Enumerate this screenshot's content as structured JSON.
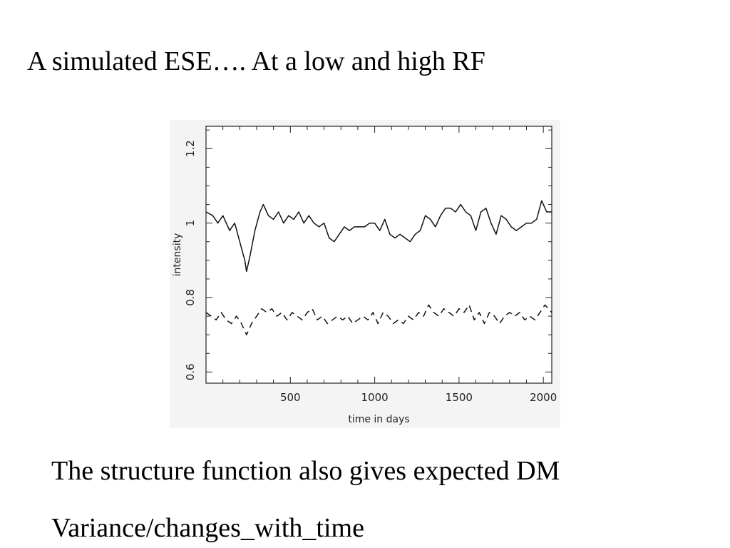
{
  "slide": {
    "title": "A simulated ESE…. At a low and high RF",
    "body_lines": [
      "The structure function also gives expected DM",
      "Variance/changes_with_time"
    ]
  },
  "chart_data": {
    "type": "line",
    "title": "",
    "xlabel": "time in days",
    "ylabel": "intensity",
    "xlim": [
      0,
      2050
    ],
    "ylim": [
      0.57,
      1.26
    ],
    "x_ticks": [
      500,
      1000,
      1500,
      2000
    ],
    "x_tick_labels": [
      "500",
      "1000",
      "1500",
      "2000"
    ],
    "y_ticks": [
      0.6,
      0.8,
      1.0,
      1.2
    ],
    "y_tick_labels": [
      "0.6",
      "0.8",
      "1",
      "1.2"
    ],
    "grid": false,
    "legend": "none",
    "series": [
      {
        "style": "solid",
        "x": [
          0,
          40,
          70,
          100,
          140,
          170,
          200,
          230,
          240,
          260,
          290,
          320,
          340,
          370,
          400,
          430,
          460,
          490,
          520,
          550,
          580,
          610,
          640,
          670,
          700,
          730,
          760,
          790,
          820,
          850,
          880,
          910,
          940,
          970,
          1000,
          1030,
          1060,
          1090,
          1120,
          1150,
          1180,
          1210,
          1240,
          1270,
          1300,
          1330,
          1360,
          1390,
          1420,
          1450,
          1480,
          1510,
          1540,
          1570,
          1600,
          1630,
          1660,
          1690,
          1720,
          1750,
          1780,
          1810,
          1840,
          1870,
          1900,
          1930,
          1960,
          1990,
          2020,
          2050
        ],
        "y": [
          1.03,
          1.02,
          1.0,
          1.02,
          0.98,
          1.0,
          0.95,
          0.9,
          0.87,
          0.91,
          0.98,
          1.03,
          1.05,
          1.02,
          1.01,
          1.03,
          1.0,
          1.02,
          1.01,
          1.03,
          1.0,
          1.02,
          1.0,
          0.99,
          1.0,
          0.96,
          0.95,
          0.97,
          0.99,
          0.98,
          0.99,
          0.99,
          0.99,
          1.0,
          1.0,
          0.98,
          1.01,
          0.97,
          0.96,
          0.97,
          0.96,
          0.95,
          0.97,
          0.98,
          1.02,
          1.01,
          0.99,
          1.02,
          1.04,
          1.04,
          1.03,
          1.05,
          1.03,
          1.02,
          0.98,
          1.03,
          1.04,
          1.0,
          0.97,
          1.02,
          1.01,
          0.99,
          0.98,
          0.99,
          1.0,
          1.0,
          1.01,
          1.06,
          1.03,
          1.03
        ]
      },
      {
        "style": "dashed",
        "x": [
          0,
          30,
          60,
          90,
          120,
          150,
          180,
          210,
          240,
          270,
          300,
          330,
          360,
          390,
          420,
          450,
          480,
          510,
          540,
          570,
          600,
          630,
          660,
          690,
          720,
          750,
          780,
          810,
          840,
          870,
          900,
          930,
          960,
          990,
          1020,
          1050,
          1080,
          1110,
          1140,
          1170,
          1200,
          1230,
          1260,
          1290,
          1320,
          1350,
          1380,
          1410,
          1440,
          1470,
          1500,
          1530,
          1560,
          1590,
          1620,
          1650,
          1680,
          1710,
          1740,
          1770,
          1800,
          1830,
          1860,
          1890,
          1920,
          1950,
          1980,
          2010,
          2050
        ],
        "y": [
          0.76,
          0.75,
          0.74,
          0.76,
          0.74,
          0.73,
          0.75,
          0.73,
          0.7,
          0.73,
          0.75,
          0.77,
          0.76,
          0.77,
          0.75,
          0.76,
          0.74,
          0.76,
          0.75,
          0.74,
          0.76,
          0.77,
          0.74,
          0.75,
          0.73,
          0.74,
          0.75,
          0.74,
          0.75,
          0.73,
          0.74,
          0.75,
          0.74,
          0.76,
          0.73,
          0.76,
          0.75,
          0.73,
          0.74,
          0.73,
          0.75,
          0.74,
          0.76,
          0.75,
          0.78,
          0.76,
          0.75,
          0.77,
          0.76,
          0.75,
          0.77,
          0.76,
          0.78,
          0.74,
          0.76,
          0.73,
          0.76,
          0.75,
          0.73,
          0.75,
          0.76,
          0.75,
          0.76,
          0.74,
          0.75,
          0.74,
          0.76,
          0.78,
          0.76
        ]
      }
    ]
  }
}
